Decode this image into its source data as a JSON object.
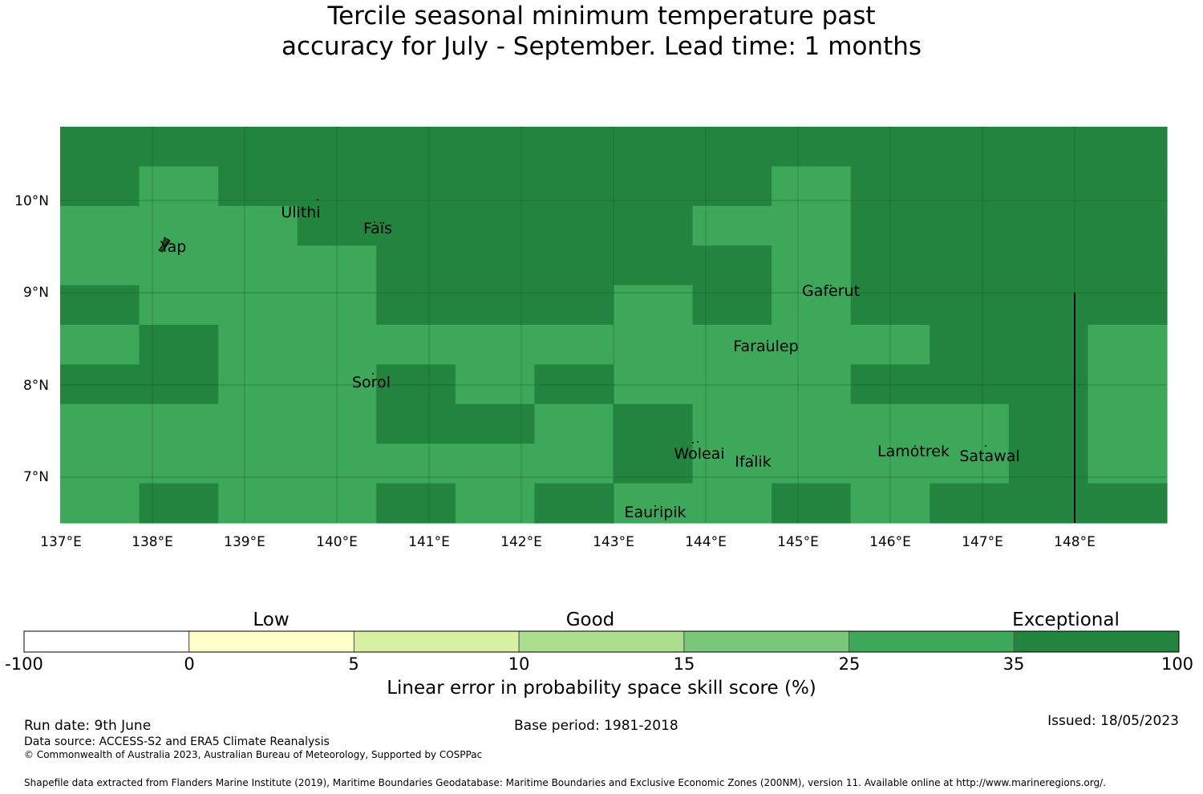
{
  "title": {
    "line1": "Tercile seasonal minimum temperature past",
    "line2": "accuracy for July - September. Lead time: 1 months"
  },
  "map": {
    "x_tick_labels": [
      "137°E",
      "138°E",
      "139°E",
      "140°E",
      "141°E",
      "142°E",
      "143°E",
      "144°E",
      "145°E",
      "146°E",
      "147°E",
      "148°E"
    ],
    "y_tick_labels": [
      "10°N",
      "9°N",
      "8°N",
      "7°N"
    ],
    "places": [
      {
        "name": "Ulithi"
      },
      {
        "name": "Faïs"
      },
      {
        "name": "Yap"
      },
      {
        "name": "Gaferut"
      },
      {
        "name": "Faraulep"
      },
      {
        "name": "Sorol"
      },
      {
        "name": "Woleai"
      },
      {
        "name": "Ifalik"
      },
      {
        "name": "Lamotrek"
      },
      {
        "name": "Satawal"
      },
      {
        "name": "Eauripik"
      }
    ],
    "colors": {
      "good_25_35": "#3ea85a",
      "exceptional_35_100": "#22843f"
    },
    "grid": {
      "cols": 14,
      "rows": 10,
      "values": [
        "EEEEEEEEEEEEEE",
        "EGEEEEEEEGEEEE",
        "GGGEEEEEGGEEEE",
        "GGGGEEEEEGEEEE",
        "EGGGEEEGEGEEEE",
        "GEGGGGGGGGGEEG",
        "EEGGEGEGGGEEEG",
        "GGGGEEGEGGGGEG",
        "GGGGGGGEGGGGEG",
        "GEGGEGEGGEGEEE"
      ]
    }
  },
  "colorbar": {
    "categories": [
      {
        "label": "Low"
      },
      {
        "label": "Good"
      },
      {
        "label": "Exceptional"
      }
    ],
    "bins": [
      {
        "from": -100,
        "to": 0,
        "color": "#ffffff"
      },
      {
        "from": 0,
        "to": 5,
        "color": "#ffffcc"
      },
      {
        "from": 5,
        "to": 10,
        "color": "#d9f0a3"
      },
      {
        "from": 10,
        "to": 15,
        "color": "#addd8e"
      },
      {
        "from": 15,
        "to": 25,
        "color": "#78c679"
      },
      {
        "from": 25,
        "to": 35,
        "color": "#3ea85a"
      },
      {
        "from": 35,
        "to": 100,
        "color": "#22843f"
      }
    ],
    "tick_labels": [
      "-100",
      "0",
      "5",
      "10",
      "15",
      "25",
      "35",
      "100"
    ],
    "title": "Linear error in probability space skill score (%)"
  },
  "footer": {
    "run_date": "Run date: 9th June",
    "base_period": "Base period: 1981-2018",
    "issued": "Issued: 18/05/2023",
    "data_source": "Data source: ACCESS-S2 and ERA5 Climate Reanalysis",
    "copyright": "© Commonwealth of Australia 2023, Australian Bureau of Meteorology, Supported by COSPPac",
    "shapefile": "Shapefile data extracted from Flanders Marine Institute (2019), Maritime Boundaries Geodatabase: Maritime Boundaries and Exclusive Economic Zones (200NM), version 11. Available online at http://www.marineregions.org/."
  }
}
